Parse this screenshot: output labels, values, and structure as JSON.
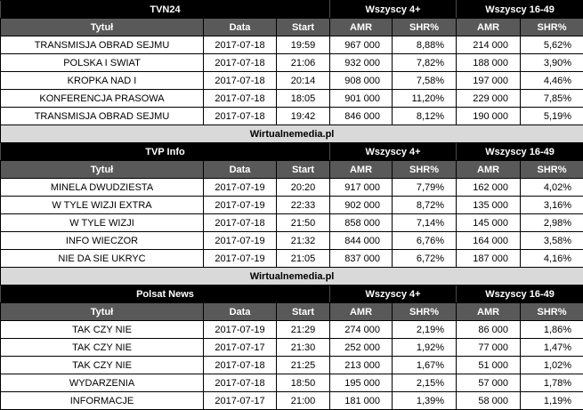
{
  "colors": {
    "header_bg": "#000000",
    "header_text": "#ffffff",
    "subheader_bg": "#595959",
    "subheader_text": "#ffffff",
    "source_row_bg": "#d9d9d9",
    "data_row_bg": "#ffffff",
    "body_text": "#000000",
    "border": "#000000"
  },
  "chart_data": {
    "type": "table",
    "source_label": "Wirtualnemedia.pl",
    "audience_groups": [
      "Wszyscy 4+",
      "Wszyscy 16-49"
    ],
    "columns": [
      "Tytuł",
      "Data",
      "Start",
      "AMR",
      "SHR%",
      "AMR",
      "SHR%"
    ],
    "sections": [
      {
        "channel": "TVN24",
        "source_after": true,
        "rows": [
          [
            "TRANSMISJA OBRAD SEJMU",
            "2017-07-18",
            "19:59",
            "967 000",
            "8,88%",
            "214 000",
            "5,62%"
          ],
          [
            "POLSKA I SWIAT",
            "2017-07-18",
            "21:06",
            "932 000",
            "7,82%",
            "188 000",
            "3,90%"
          ],
          [
            "KROPKA NAD I",
            "2017-07-18",
            "20:14",
            "908 000",
            "7,58%",
            "197 000",
            "4,46%"
          ],
          [
            "KONFERENCJA PRASOWA",
            "2017-07-18",
            "18:05",
            "901 000",
            "11,20%",
            "229 000",
            "7,85%"
          ],
          [
            "TRANSMISJA OBRAD SEJMU",
            "2017-07-18",
            "19:42",
            "846 000",
            "8,12%",
            "190 000",
            "5,19%"
          ]
        ]
      },
      {
        "channel": "TVP Info",
        "source_after": true,
        "rows": [
          [
            "MINELA DWUDZIESTA",
            "2017-07-19",
            "20:20",
            "917 000",
            "7,79%",
            "162 000",
            "4,02%"
          ],
          [
            "W TYLE WIZJI EXTRA",
            "2017-07-19",
            "22:33",
            "902 000",
            "8,72%",
            "135 000",
            "3,16%"
          ],
          [
            "W TYLE WIZJI",
            "2017-07-18",
            "21:50",
            "858 000",
            "7,14%",
            "145 000",
            "2,98%"
          ],
          [
            "INFO WIECZOR",
            "2017-07-19",
            "21:32",
            "844 000",
            "6,76%",
            "164 000",
            "3,58%"
          ],
          [
            "NIE DA SIE UKRYC",
            "2017-07-19",
            "21:05",
            "837 000",
            "6,72%",
            "187 000",
            "4,16%"
          ]
        ]
      },
      {
        "channel": "Polsat News",
        "source_after": false,
        "rows": [
          [
            "TAK CZY NIE",
            "2017-07-19",
            "21:29",
            "274 000",
            "2,19%",
            "86 000",
            "1,86%"
          ],
          [
            "TAK CZY NIE",
            "2017-07-17",
            "21:30",
            "252 000",
            "1,92%",
            "77 000",
            "1,47%"
          ],
          [
            "TAK CZY NIE",
            "2017-07-18",
            "21:25",
            "213 000",
            "1,67%",
            "51 000",
            "1,02%"
          ],
          [
            "WYDARZENIA",
            "2017-07-18",
            "18:50",
            "195 000",
            "2,15%",
            "57 000",
            "1,78%"
          ],
          [
            "INFORMACJE",
            "2017-07-17",
            "21:00",
            "181 000",
            "1,39%",
            "58 000",
            "1,19%"
          ]
        ]
      }
    ]
  }
}
